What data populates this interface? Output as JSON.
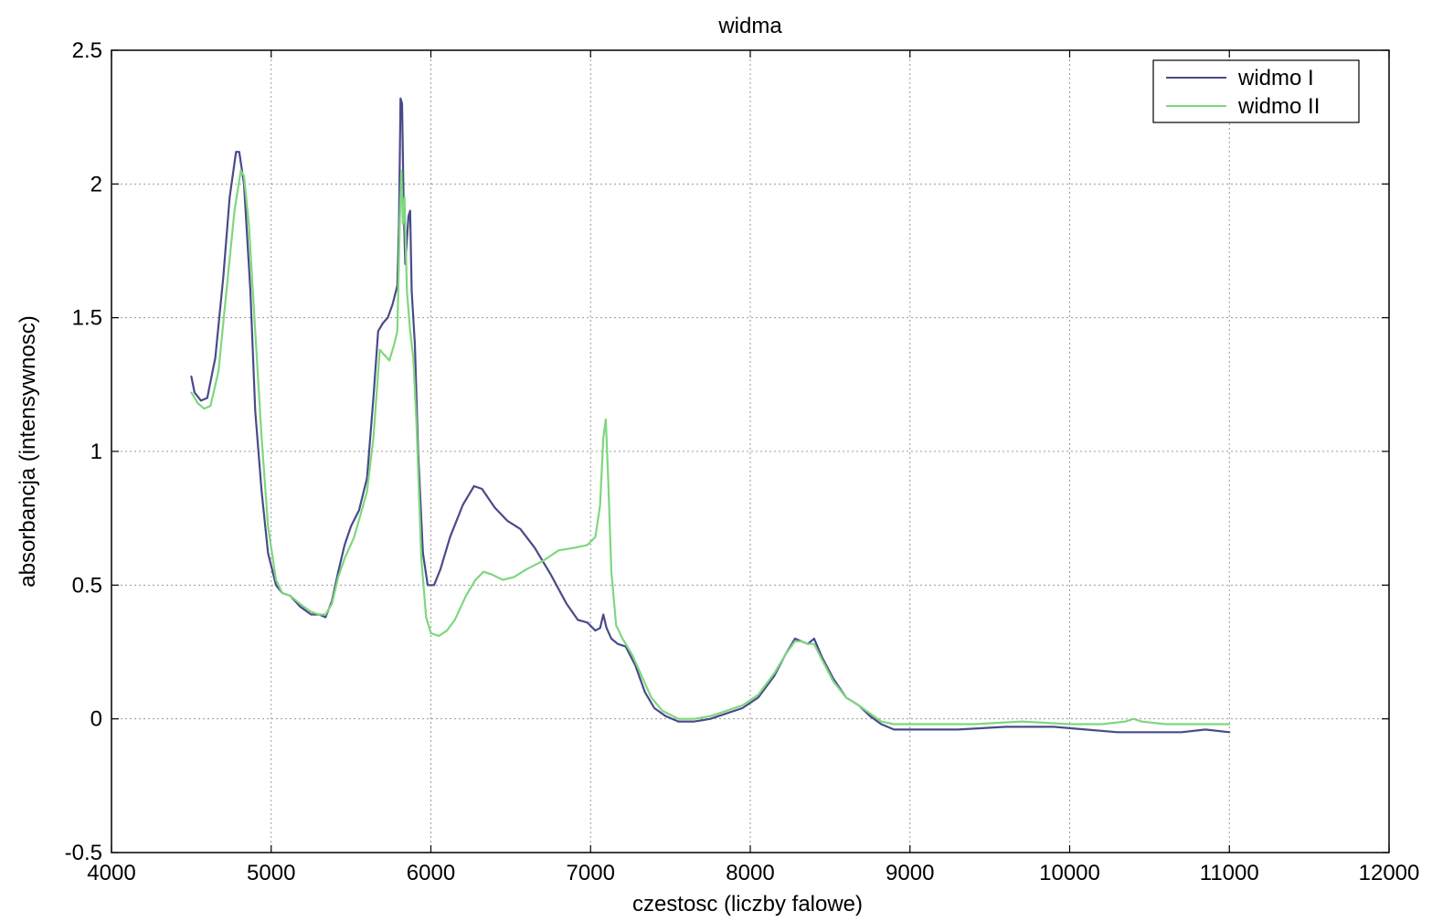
{
  "chart_data": {
    "type": "line",
    "title": "widma",
    "xlabel": "czestosc (liczby falowe)",
    "ylabel": "absorbancja (intensywnosc)",
    "xlim": [
      4000,
      12000
    ],
    "ylim": [
      -0.5,
      2.5
    ],
    "xticks": [
      4000,
      5000,
      6000,
      7000,
      8000,
      9000,
      10000,
      11000,
      12000
    ],
    "yticks": [
      -0.5,
      0,
      0.5,
      1,
      1.5,
      2,
      2.5
    ],
    "xtick_labels": [
      "4000",
      "5000",
      "6000",
      "7000",
      "8000",
      "9000",
      "10000",
      "11000",
      "12000"
    ],
    "ytick_labels": [
      "-0.5",
      "0",
      "0.5",
      "1",
      "1.5",
      "2",
      "2.5"
    ],
    "grid": true,
    "legend_position": "top-right",
    "series": [
      {
        "name": "widmo I",
        "color": "#4a4a8a",
        "points": [
          [
            4500,
            1.28
          ],
          [
            4520,
            1.22
          ],
          [
            4560,
            1.19
          ],
          [
            4600,
            1.2
          ],
          [
            4650,
            1.35
          ],
          [
            4700,
            1.65
          ],
          [
            4740,
            1.95
          ],
          [
            4780,
            2.12
          ],
          [
            4800,
            2.12
          ],
          [
            4830,
            2.0
          ],
          [
            4870,
            1.6
          ],
          [
            4900,
            1.15
          ],
          [
            4940,
            0.85
          ],
          [
            4980,
            0.62
          ],
          [
            5030,
            0.5
          ],
          [
            5070,
            0.47
          ],
          [
            5120,
            0.46
          ],
          [
            5180,
            0.42
          ],
          [
            5250,
            0.39
          ],
          [
            5300,
            0.39
          ],
          [
            5340,
            0.38
          ],
          [
            5380,
            0.44
          ],
          [
            5420,
            0.55
          ],
          [
            5460,
            0.65
          ],
          [
            5500,
            0.72
          ],
          [
            5550,
            0.78
          ],
          [
            5600,
            0.9
          ],
          [
            5640,
            1.2
          ],
          [
            5670,
            1.45
          ],
          [
            5700,
            1.48
          ],
          [
            5730,
            1.5
          ],
          [
            5760,
            1.55
          ],
          [
            5790,
            1.62
          ],
          [
            5800,
            1.85
          ],
          [
            5810,
            2.32
          ],
          [
            5820,
            2.3
          ],
          [
            5830,
            1.9
          ],
          [
            5840,
            1.7
          ],
          [
            5860,
            1.88
          ],
          [
            5870,
            1.9
          ],
          [
            5880,
            1.6
          ],
          [
            5900,
            1.4
          ],
          [
            5920,
            1.0
          ],
          [
            5950,
            0.62
          ],
          [
            5980,
            0.5
          ],
          [
            6020,
            0.5
          ],
          [
            6060,
            0.56
          ],
          [
            6120,
            0.68
          ],
          [
            6200,
            0.8
          ],
          [
            6270,
            0.87
          ],
          [
            6320,
            0.86
          ],
          [
            6400,
            0.79
          ],
          [
            6480,
            0.74
          ],
          [
            6560,
            0.71
          ],
          [
            6650,
            0.64
          ],
          [
            6750,
            0.54
          ],
          [
            6850,
            0.43
          ],
          [
            6920,
            0.37
          ],
          [
            6980,
            0.36
          ],
          [
            7030,
            0.33
          ],
          [
            7060,
            0.34
          ],
          [
            7080,
            0.39
          ],
          [
            7100,
            0.34
          ],
          [
            7130,
            0.3
          ],
          [
            7170,
            0.28
          ],
          [
            7220,
            0.27
          ],
          [
            7280,
            0.2
          ],
          [
            7340,
            0.1
          ],
          [
            7400,
            0.04
          ],
          [
            7470,
            0.01
          ],
          [
            7550,
            -0.01
          ],
          [
            7650,
            -0.01
          ],
          [
            7750,
            0.0
          ],
          [
            7850,
            0.02
          ],
          [
            7950,
            0.04
          ],
          [
            8050,
            0.08
          ],
          [
            8150,
            0.16
          ],
          [
            8220,
            0.24
          ],
          [
            8280,
            0.3
          ],
          [
            8320,
            0.29
          ],
          [
            8360,
            0.28
          ],
          [
            8400,
            0.3
          ],
          [
            8450,
            0.23
          ],
          [
            8520,
            0.15
          ],
          [
            8600,
            0.08
          ],
          [
            8680,
            0.05
          ],
          [
            8750,
            0.01
          ],
          [
            8820,
            -0.02
          ],
          [
            8900,
            -0.04
          ],
          [
            9050,
            -0.04
          ],
          [
            9300,
            -0.04
          ],
          [
            9600,
            -0.03
          ],
          [
            9900,
            -0.03
          ],
          [
            10100,
            -0.04
          ],
          [
            10300,
            -0.05
          ],
          [
            10500,
            -0.05
          ],
          [
            10700,
            -0.05
          ],
          [
            10850,
            -0.04
          ],
          [
            11000,
            -0.05
          ]
        ]
      },
      {
        "name": "widmo II",
        "color": "#7fd77f",
        "points": [
          [
            4500,
            1.22
          ],
          [
            4540,
            1.18
          ],
          [
            4580,
            1.16
          ],
          [
            4620,
            1.17
          ],
          [
            4670,
            1.3
          ],
          [
            4720,
            1.6
          ],
          [
            4770,
            1.9
          ],
          [
            4810,
            2.05
          ],
          [
            4830,
            2.03
          ],
          [
            4860,
            1.85
          ],
          [
            4900,
            1.45
          ],
          [
            4940,
            1.05
          ],
          [
            4980,
            0.72
          ],
          [
            5030,
            0.52
          ],
          [
            5070,
            0.47
          ],
          [
            5120,
            0.46
          ],
          [
            5180,
            0.43
          ],
          [
            5250,
            0.4
          ],
          [
            5300,
            0.39
          ],
          [
            5340,
            0.39
          ],
          [
            5380,
            0.43
          ],
          [
            5420,
            0.53
          ],
          [
            5460,
            0.6
          ],
          [
            5520,
            0.68
          ],
          [
            5600,
            0.85
          ],
          [
            5640,
            1.05
          ],
          [
            5680,
            1.38
          ],
          [
            5710,
            1.36
          ],
          [
            5740,
            1.34
          ],
          [
            5770,
            1.4
          ],
          [
            5790,
            1.45
          ],
          [
            5805,
            1.85
          ],
          [
            5815,
            2.05
          ],
          [
            5825,
            1.85
          ],
          [
            5835,
            1.95
          ],
          [
            5850,
            1.6
          ],
          [
            5870,
            1.45
          ],
          [
            5890,
            1.35
          ],
          [
            5910,
            1.1
          ],
          [
            5940,
            0.6
          ],
          [
            5970,
            0.38
          ],
          [
            6000,
            0.32
          ],
          [
            6050,
            0.31
          ],
          [
            6100,
            0.33
          ],
          [
            6150,
            0.37
          ],
          [
            6220,
            0.46
          ],
          [
            6280,
            0.52
          ],
          [
            6330,
            0.55
          ],
          [
            6380,
            0.54
          ],
          [
            6450,
            0.52
          ],
          [
            6520,
            0.53
          ],
          [
            6600,
            0.56
          ],
          [
            6700,
            0.59
          ],
          [
            6800,
            0.63
          ],
          [
            6900,
            0.64
          ],
          [
            6980,
            0.65
          ],
          [
            7030,
            0.68
          ],
          [
            7060,
            0.8
          ],
          [
            7080,
            1.05
          ],
          [
            7095,
            1.12
          ],
          [
            7110,
            0.9
          ],
          [
            7130,
            0.55
          ],
          [
            7160,
            0.35
          ],
          [
            7200,
            0.3
          ],
          [
            7260,
            0.24
          ],
          [
            7320,
            0.16
          ],
          [
            7380,
            0.08
          ],
          [
            7450,
            0.03
          ],
          [
            7550,
            0.0
          ],
          [
            7650,
            0.0
          ],
          [
            7750,
            0.01
          ],
          [
            7850,
            0.03
          ],
          [
            7950,
            0.05
          ],
          [
            8050,
            0.09
          ],
          [
            8150,
            0.17
          ],
          [
            8220,
            0.24
          ],
          [
            8280,
            0.29
          ],
          [
            8320,
            0.29
          ],
          [
            8360,
            0.28
          ],
          [
            8400,
            0.28
          ],
          [
            8450,
            0.22
          ],
          [
            8520,
            0.14
          ],
          [
            8600,
            0.08
          ],
          [
            8680,
            0.05
          ],
          [
            8750,
            0.02
          ],
          [
            8820,
            -0.01
          ],
          [
            8900,
            -0.02
          ],
          [
            9100,
            -0.02
          ],
          [
            9400,
            -0.02
          ],
          [
            9700,
            -0.01
          ],
          [
            10000,
            -0.02
          ],
          [
            10200,
            -0.02
          ],
          [
            10350,
            -0.01
          ],
          [
            10400,
            0.0
          ],
          [
            10450,
            -0.01
          ],
          [
            10600,
            -0.02
          ],
          [
            10800,
            -0.02
          ],
          [
            11000,
            -0.02
          ]
        ]
      }
    ]
  }
}
